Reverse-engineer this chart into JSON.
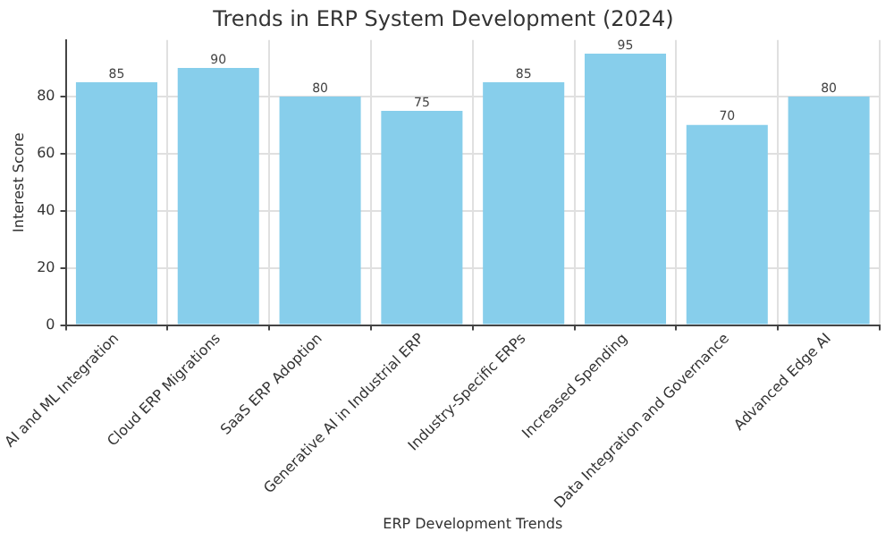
{
  "chart_data": {
    "type": "bar",
    "title": "Trends in ERP System Development (2024)",
    "xlabel": "ERP Development Trends",
    "ylabel": "Interest Score",
    "categories": [
      "AI and ML Integration",
      "Cloud ERP Migrations",
      "SaaS ERP Adoption",
      "Generative AI in Industrial ERP",
      "Industry-Specific ERPs",
      "Increased Spending",
      "Data Integration and Governance",
      "Advanced Edge AI"
    ],
    "values": [
      85,
      90,
      80,
      75,
      85,
      95,
      70,
      80
    ],
    "color": "#87ceeb",
    "ylim": [
      0,
      99.75
    ],
    "yticks": [
      0,
      20,
      40,
      60,
      80
    ],
    "grid": true,
    "data_labels": true,
    "legend": false
  }
}
